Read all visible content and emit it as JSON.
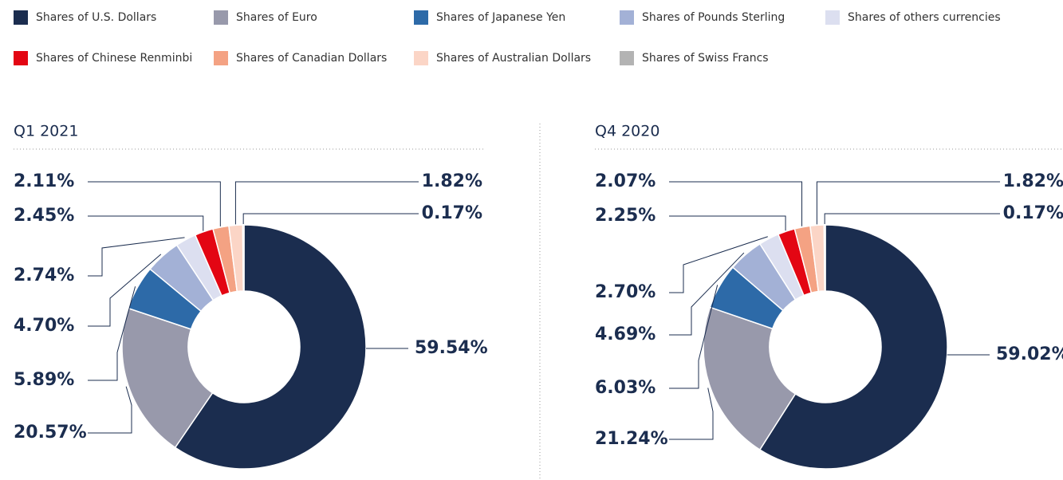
{
  "chart_data": [
    {
      "type": "pie",
      "title": "Q1 2021",
      "categories": [
        "Shares of U.S. Dollars",
        "Shares of Euro",
        "Shares of Japanese Yen",
        "Shares of Pounds Sterling",
        "Shares of others currencies",
        "Shares of Chinese Renminbi",
        "Shares of Canadian Dollars",
        "Shares of Australian Dollars",
        "Shares of Swiss Francs"
      ],
      "values": [
        59.54,
        20.57,
        5.89,
        4.7,
        2.74,
        2.45,
        2.11,
        1.82,
        0.17
      ],
      "value_labels": [
        "59.54%",
        "20.57%",
        "5.89%",
        "4.70%",
        "2.74%",
        "2.45%",
        "2.11%",
        "1.82%",
        "0.17%"
      ],
      "colors": [
        "#1b2d4f",
        "#9899ab",
        "#2d6aa8",
        "#a3b1d6",
        "#dcdff0",
        "#e30613",
        "#f4a283",
        "#fbd5c6",
        "#b3b3b3"
      ]
    },
    {
      "type": "pie",
      "title": "Q4 2020",
      "categories": [
        "Shares of U.S. Dollars",
        "Shares of Euro",
        "Shares of Japanese Yen",
        "Shares of Pounds Sterling",
        "Shares of others currencies",
        "Shares of Chinese Renminbi",
        "Shares of Canadian Dollars",
        "Shares of Australian Dollars",
        "Shares of Swiss Francs"
      ],
      "values": [
        59.02,
        21.24,
        6.03,
        4.69,
        2.7,
        2.25,
        2.07,
        1.82,
        0.17
      ],
      "value_labels": [
        "59.02%",
        "21.24%",
        "6.03%",
        "4.69%",
        "2.70%",
        "2.25%",
        "2.07%",
        "1.82%",
        "0.17%"
      ],
      "colors": [
        "#1b2d4f",
        "#9899ab",
        "#2d6aa8",
        "#a3b1d6",
        "#dcdff0",
        "#e30613",
        "#f4a283",
        "#fbd5c6",
        "#b3b3b3"
      ]
    }
  ]
}
